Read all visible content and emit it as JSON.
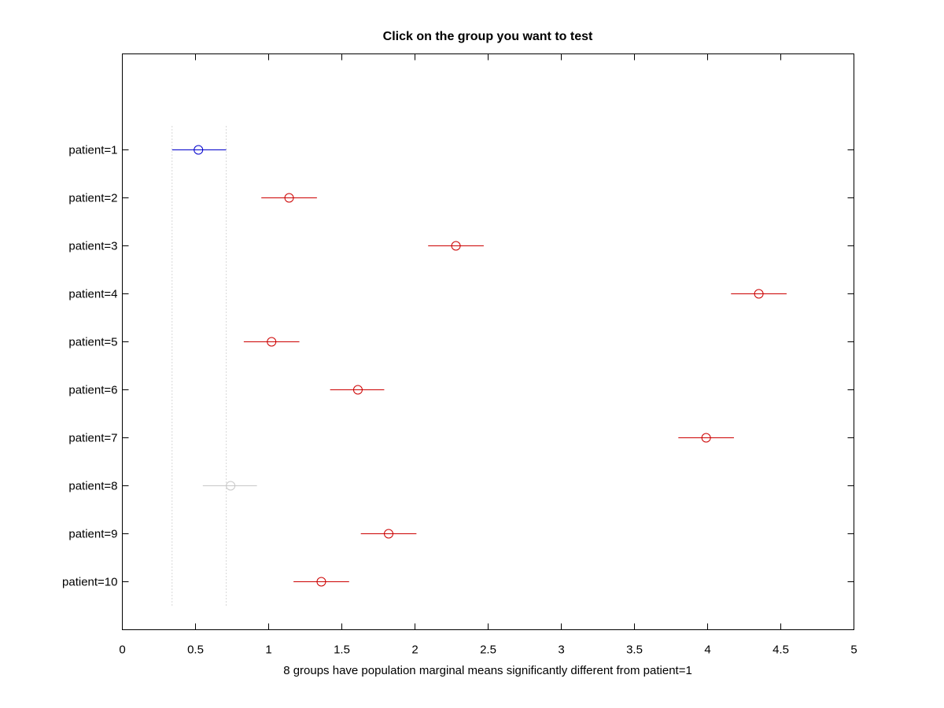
{
  "chart_data": {
    "type": "scatter",
    "title": "Click on the group you want to test",
    "xlabel": "8 groups have population marginal means significantly different from patient=1",
    "ylabel": "",
    "xlim": [
      0,
      5
    ],
    "xticks": [
      "0",
      "0.5",
      "1",
      "1.5",
      "2",
      "2.5",
      "3",
      "3.5",
      "4",
      "4.5",
      "5"
    ],
    "xtick_values": [
      0,
      0.5,
      1,
      1.5,
      2,
      2.5,
      3,
      3.5,
      4,
      4.5,
      5
    ],
    "categories": [
      "patient=1",
      "patient=2",
      "patient=3",
      "patient=4",
      "patient=5",
      "patient=6",
      "patient=7",
      "patient=8",
      "patient=9",
      "patient=10"
    ],
    "means": [
      0.52,
      1.14,
      2.28,
      4.35,
      1.02,
      1.61,
      3.99,
      0.74,
      1.82,
      1.36
    ],
    "lower": [
      0.34,
      0.95,
      2.09,
      4.16,
      0.83,
      1.42,
      3.8,
      0.55,
      1.63,
      1.17
    ],
    "upper": [
      0.71,
      1.33,
      2.47,
      4.54,
      1.21,
      1.79,
      4.18,
      0.92,
      2.01,
      1.55
    ],
    "status": [
      "selected",
      "significant",
      "significant",
      "significant",
      "significant",
      "significant",
      "significant",
      "not-significant",
      "significant",
      "significant"
    ],
    "reference_lines": [
      0.34,
      0.71
    ],
    "grid": false,
    "colors": {
      "selected": "#0000cc",
      "significant": "#cc0000",
      "not-significant": "#c8c8c8",
      "reference": "#b0b0b0",
      "axes": "#000000"
    }
  }
}
